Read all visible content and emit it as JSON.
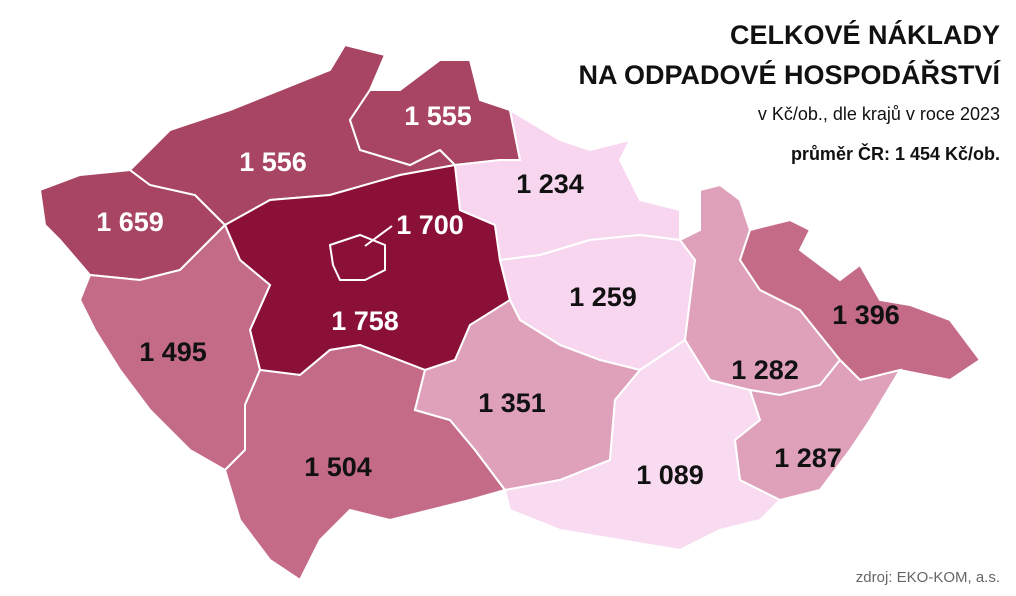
{
  "header": {
    "title": [
      "CELKOVÉ NÁKLADY",
      "NA ODPADOVÉ HOSPODÁŘSTVÍ"
    ],
    "subtitle": "v Kč/ob., dle krajů v roce 2023",
    "average": "průměr ČR: 1 454 Kč/ob."
  },
  "regions": [
    {
      "label": "1 659",
      "color": "#a84562"
    },
    {
      "label": "1 556",
      "color": "#a84562"
    },
    {
      "label": "1 555",
      "color": "#a84562"
    },
    {
      "label": "1 758",
      "color": "#8b1038"
    },
    {
      "label": "1 700",
      "color": "#8b1038"
    },
    {
      "label": "1 495",
      "color": "#c46b87"
    },
    {
      "label": "1 504",
      "color": "#c46b87"
    },
    {
      "label": "1 234",
      "color": "#f8d6ef"
    },
    {
      "label": "1 259",
      "color": "#f8d6ef"
    },
    {
      "label": "1 351",
      "color": "#dea1b9"
    },
    {
      "label": "1 089",
      "color": "#f9dbf1"
    },
    {
      "label": "1 282",
      "color": "#dea1b9"
    },
    {
      "label": "1 396",
      "color": "#c46b87"
    },
    {
      "label": "1 287",
      "color": "#dea1b9"
    }
  ],
  "source": "zdroj: EKO-KOM, a.s."
}
